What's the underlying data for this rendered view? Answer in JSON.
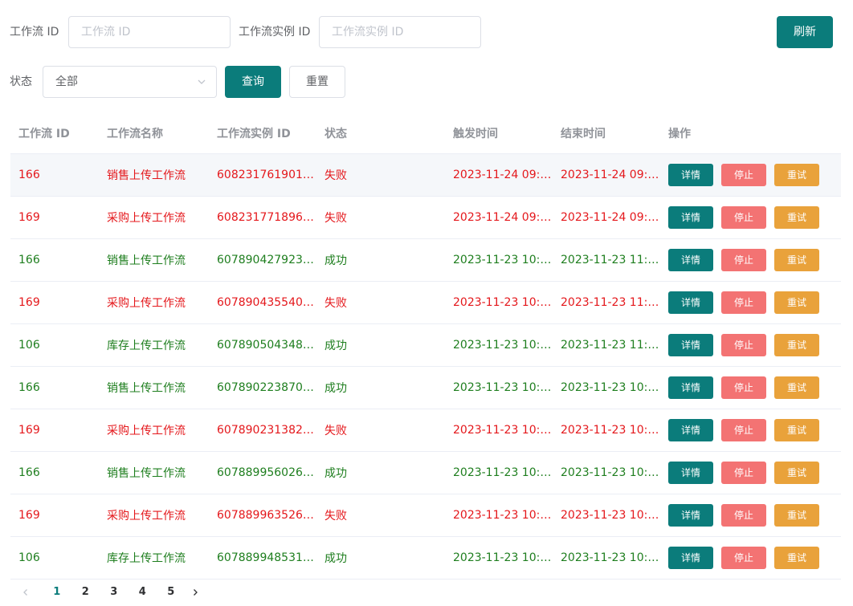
{
  "filters": {
    "workflow_id_label": "工作流 ID",
    "workflow_id_placeholder": "工作流 ID",
    "instance_id_label": "工作流实例 ID",
    "instance_id_placeholder": "工作流实例 ID",
    "status_label": "状态",
    "status_value": "全部",
    "query_label": "查询",
    "reset_label": "重置",
    "refresh_label": "刷新"
  },
  "table": {
    "headers": [
      "工作流 ID",
      "工作流名称",
      "工作流实例 ID",
      "状态",
      "触发时间",
      "结束时间",
      "操作"
    ],
    "actions": {
      "detail": "详情",
      "stop": "停止",
      "retry": "重试"
    },
    "rows": [
      {
        "id": "166",
        "name": "销售上传工作流",
        "instance": "608231761901…",
        "status": "失败",
        "trigger": "2023-11-24 09:…",
        "end": "2023-11-24 09:…",
        "result": "fail"
      },
      {
        "id": "169",
        "name": "采购上传工作流",
        "instance": "608231771896…",
        "status": "失败",
        "trigger": "2023-11-24 09:…",
        "end": "2023-11-24 09:…",
        "result": "fail"
      },
      {
        "id": "166",
        "name": "销售上传工作流",
        "instance": "607890427923…",
        "status": "成功",
        "trigger": "2023-11-23 10:…",
        "end": "2023-11-23 11:…",
        "result": "ok"
      },
      {
        "id": "169",
        "name": "采购上传工作流",
        "instance": "607890435540…",
        "status": "失败",
        "trigger": "2023-11-23 10:…",
        "end": "2023-11-23 11:…",
        "result": "fail"
      },
      {
        "id": "106",
        "name": "库存上传工作流",
        "instance": "607890504348…",
        "status": "成功",
        "trigger": "2023-11-23 10:…",
        "end": "2023-11-23 11:…",
        "result": "ok"
      },
      {
        "id": "166",
        "name": "销售上传工作流",
        "instance": "607890223870…",
        "status": "成功",
        "trigger": "2023-11-23 10:…",
        "end": "2023-11-23 10:…",
        "result": "ok"
      },
      {
        "id": "169",
        "name": "采购上传工作流",
        "instance": "607890231382…",
        "status": "失败",
        "trigger": "2023-11-23 10:…",
        "end": "2023-11-23 10:…",
        "result": "fail"
      },
      {
        "id": "166",
        "name": "销售上传工作流",
        "instance": "607889956026…",
        "status": "成功",
        "trigger": "2023-11-23 10:…",
        "end": "2023-11-23 10:…",
        "result": "ok"
      },
      {
        "id": "169",
        "name": "采购上传工作流",
        "instance": "607889963526…",
        "status": "失败",
        "trigger": "2023-11-23 10:…",
        "end": "2023-11-23 10:…",
        "result": "fail"
      },
      {
        "id": "106",
        "name": "库存上传工作流",
        "instance": "607889948531…",
        "status": "成功",
        "trigger": "2023-11-23 10:…",
        "end": "2023-11-23 10:…",
        "result": "ok"
      }
    ]
  },
  "pagination": {
    "pages": [
      "1",
      "2",
      "3",
      "4",
      "5"
    ],
    "current": "1"
  },
  "icons": {
    "select_arrow": "chevron-down-icon",
    "prev": "chevron-left-icon",
    "next": "chevron-right-icon"
  },
  "colors": {
    "primary": "#0b7c7b",
    "fail": "#e4171b",
    "success": "#1e7e1e",
    "stop": "#f37373",
    "retry": "#e9a23b"
  }
}
